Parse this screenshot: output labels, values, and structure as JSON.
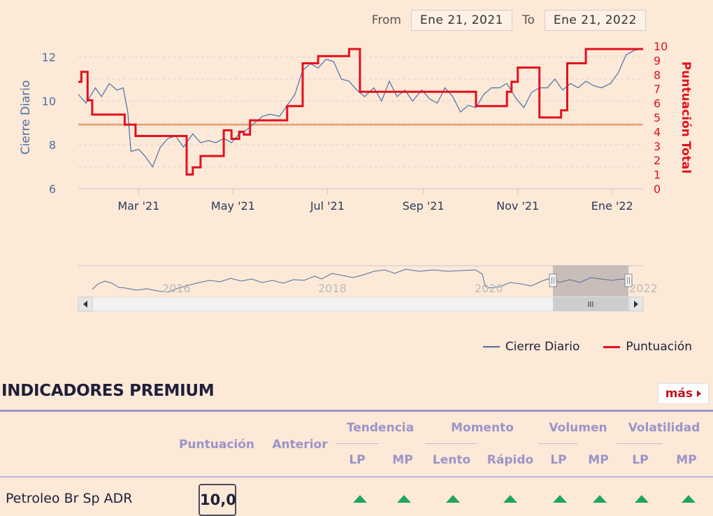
{
  "range": {
    "from_label": "From",
    "from_value": "Ene 21, 2021",
    "to_label": "To",
    "to_value": "Ene 21, 2022"
  },
  "chart_data": {
    "type": "line",
    "x_ticks": [
      "Mar '21",
      "May '21",
      "Jul '21",
      "Sep '21",
      "Nov '21",
      "Ene '22"
    ],
    "ylabel": "Cierre Diario",
    "ylabel_right": "Puntuación Total",
    "y_ticks": [
      "6",
      "8",
      "10",
      "12"
    ],
    "y_right_ticks": [
      "0",
      "1",
      "2",
      "3",
      "4",
      "5",
      "6",
      "7",
      "8",
      "9",
      "10"
    ],
    "ylim": [
      6,
      12.5
    ],
    "y_right_lim": [
      0,
      10
    ],
    "reference_line": {
      "value": 4.5,
      "axis": "right",
      "color": "#e8a070"
    },
    "series": [
      {
        "name": "Cierre Diario",
        "color": "#4a6fa5",
        "axis": "left",
        "x": [
          "2021-01-21",
          "2021-01-26",
          "2021-02-01",
          "2021-02-05",
          "2021-02-10",
          "2021-02-15",
          "2021-02-19",
          "2021-02-22",
          "2021-02-24",
          "2021-03-01",
          "2021-03-05",
          "2021-03-10",
          "2021-03-15",
          "2021-03-20",
          "2021-03-25",
          "2021-03-30",
          "2021-04-05",
          "2021-04-10",
          "2021-04-15",
          "2021-04-20",
          "2021-04-25",
          "2021-04-30",
          "2021-05-05",
          "2021-05-10",
          "2021-05-15",
          "2021-05-20",
          "2021-05-25",
          "2021-05-31",
          "2021-06-05",
          "2021-06-10",
          "2021-06-15",
          "2021-06-20",
          "2021-06-25",
          "2021-06-30",
          "2021-07-05",
          "2021-07-10",
          "2021-07-15",
          "2021-07-20",
          "2021-07-25",
          "2021-07-31",
          "2021-08-05",
          "2021-08-10",
          "2021-08-15",
          "2021-08-20",
          "2021-08-25",
          "2021-08-31",
          "2021-09-05",
          "2021-09-10",
          "2021-09-15",
          "2021-09-20",
          "2021-09-25",
          "2021-09-30",
          "2021-10-05",
          "2021-10-10",
          "2021-10-15",
          "2021-10-20",
          "2021-10-25",
          "2021-10-31",
          "2021-11-05",
          "2021-11-10",
          "2021-11-15",
          "2021-11-20",
          "2021-11-25",
          "2021-11-30",
          "2021-12-05",
          "2021-12-10",
          "2021-12-15",
          "2021-12-20",
          "2021-12-25",
          "2021-12-31",
          "2022-01-05",
          "2022-01-10",
          "2022-01-15",
          "2022-01-21"
        ],
        "values": [
          10.3,
          9.9,
          10.6,
          10.2,
          10.8,
          10.5,
          10.6,
          9.5,
          7.7,
          7.8,
          7.5,
          7.0,
          7.9,
          8.3,
          8.4,
          7.9,
          8.5,
          8.1,
          8.2,
          8.1,
          8.3,
          8.1,
          8.5,
          8.7,
          9.0,
          9.3,
          9.4,
          9.3,
          9.8,
          10.3,
          11.4,
          11.7,
          11.5,
          11.9,
          11.8,
          11.0,
          10.9,
          10.5,
          10.2,
          10.6,
          10.0,
          10.9,
          10.2,
          10.5,
          10.0,
          10.5,
          10.1,
          9.9,
          10.6,
          10.2,
          9.5,
          9.8,
          9.7,
          10.3,
          10.6,
          10.6,
          10.8,
          10.1,
          9.7,
          10.4,
          10.6,
          10.6,
          11.0,
          10.5,
          10.8,
          10.6,
          10.9,
          10.7,
          10.6,
          10.8,
          11.3,
          12.1,
          12.3,
          12.4
        ]
      },
      {
        "name": "Puntuación",
        "color": "#e3101e",
        "axis": "right",
        "x": [
          "2021-01-21",
          "2021-01-23",
          "2021-01-27",
          "2021-01-30",
          "2021-02-05",
          "2021-02-20",
          "2021-02-27",
          "2021-03-18",
          "2021-04-01",
          "2021-04-05",
          "2021-04-10",
          "2021-04-25",
          "2021-04-30",
          "2021-05-02",
          "2021-05-05",
          "2021-05-08",
          "2021-05-12",
          "2021-05-19",
          "2021-06-05",
          "2021-06-15",
          "2021-06-25",
          "2021-07-15",
          "2021-07-22",
          "2021-10-05",
          "2021-10-25",
          "2021-10-28",
          "2021-11-01",
          "2021-11-15",
          "2021-11-27",
          "2021-11-29",
          "2021-12-03",
          "2021-12-15",
          "2022-01-21"
        ],
        "values": [
          7.5,
          8.2,
          6.2,
          5.2,
          5.2,
          4.5,
          3.7,
          3.7,
          1.0,
          1.5,
          2.3,
          4.1,
          3.5,
          3.5,
          4.0,
          3.8,
          4.8,
          4.8,
          5.8,
          8.8,
          9.3,
          9.8,
          6.8,
          5.8,
          6.8,
          7.5,
          8.5,
          5.0,
          5.0,
          5.5,
          8.8,
          9.8,
          9.8
        ]
      }
    ],
    "navigator": {
      "labels": [
        "2016",
        "2018",
        "2020",
        "2022"
      ]
    }
  },
  "legend": {
    "items": [
      {
        "label": "Cierre Diario",
        "color": "#4a6fa5"
      },
      {
        "label": "Puntuación",
        "color": "#e3101e"
      }
    ]
  },
  "indicators": {
    "title": "INDICADORES PREMIUM",
    "more_label": "más",
    "columns": {
      "score": "Puntuación",
      "previous": "Anterior",
      "groups": [
        "Tendencia",
        "Momento",
        "Volumen",
        "Volatilidad"
      ],
      "subs": [
        "LP",
        "MP",
        "Lento",
        "Rápido",
        "LP",
        "MP",
        "LP",
        "MP"
      ]
    },
    "row": {
      "name": "Petroleo Br Sp ADR",
      "score": "10,0",
      "arrow_color": "#1fa65a",
      "signals": [
        "up",
        "up",
        "up",
        "up",
        "up",
        "up",
        "up",
        "up"
      ]
    }
  }
}
